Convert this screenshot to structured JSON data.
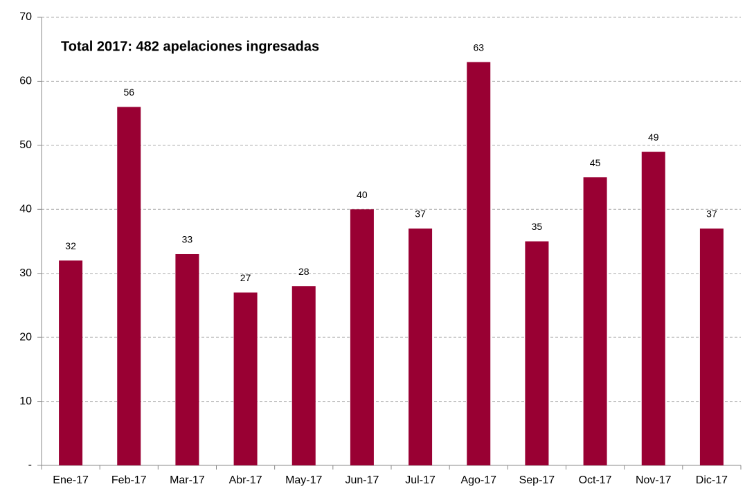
{
  "chart_data": {
    "type": "bar",
    "annotation": "Total 2017: 482 apelaciones ingresadas",
    "categories": [
      "Ene-17",
      "Feb-17",
      "Mar-17",
      "Abr-17",
      "May-17",
      "Jun-17",
      "Jul-17",
      "Ago-17",
      "Sep-17",
      "Oct-17",
      "Nov-17",
      "Dic-17"
    ],
    "values": [
      32,
      56,
      33,
      27,
      28,
      40,
      37,
      63,
      35,
      45,
      49,
      37
    ],
    "color": "#990033",
    "ylim": [
      0,
      70
    ],
    "yticks": [
      {
        "value": 0,
        "label": "-"
      },
      10,
      20,
      30,
      40,
      50,
      60,
      70
    ],
    "grid": true
  }
}
